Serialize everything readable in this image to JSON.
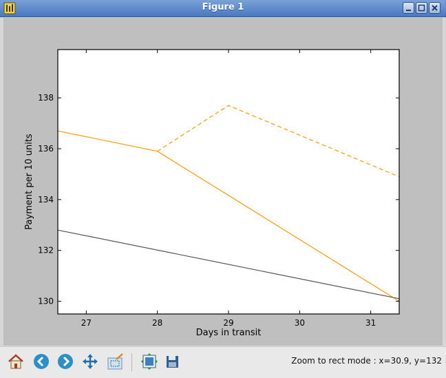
{
  "window": {
    "title": "Figure 1"
  },
  "toolbar": {
    "buttons": [
      {
        "name": "home-button",
        "icon": "home-icon"
      },
      {
        "name": "back-button",
        "icon": "back-arrow-icon"
      },
      {
        "name": "forward-button",
        "icon": "forward-arrow-icon"
      },
      {
        "name": "pan-button",
        "icon": "pan-arrows-icon"
      },
      {
        "name": "zoom-button",
        "icon": "zoom-rect-icon"
      },
      {
        "name": "subplots-button",
        "icon": "subplots-icon"
      },
      {
        "name": "save-button",
        "icon": "floppy-save-icon"
      }
    ],
    "status": "Zoom to rect mode : x=30.9, y=132"
  },
  "colors": {
    "orange": "#ff9900",
    "gray": "#555555",
    "titlebar": "#5a86c8"
  },
  "chart_data": {
    "type": "line",
    "title": "",
    "xlabel": "Days in transit",
    "ylabel": "Payment per 10 units",
    "xlim": [
      26.6,
      31.4
    ],
    "ylim": [
      129.5,
      139.9
    ],
    "xticks": [
      27,
      28,
      29,
      30,
      31
    ],
    "yticks": [
      130,
      132,
      134,
      136,
      138
    ],
    "grid": false,
    "series": [
      {
        "style": "solid",
        "color": "#ff9900",
        "x": [
          26.6,
          28.0,
          31.4
        ],
        "y": [
          136.7,
          135.9,
          130.0
        ]
      },
      {
        "style": "dashed",
        "color": "#ff9900",
        "x": [
          28.0,
          29.0,
          31.4
        ],
        "y": [
          135.9,
          137.7,
          134.9
        ]
      },
      {
        "style": "solid",
        "color": "#555555",
        "x": [
          26.6,
          31.4
        ],
        "y": [
          132.8,
          130.1
        ]
      }
    ]
  }
}
